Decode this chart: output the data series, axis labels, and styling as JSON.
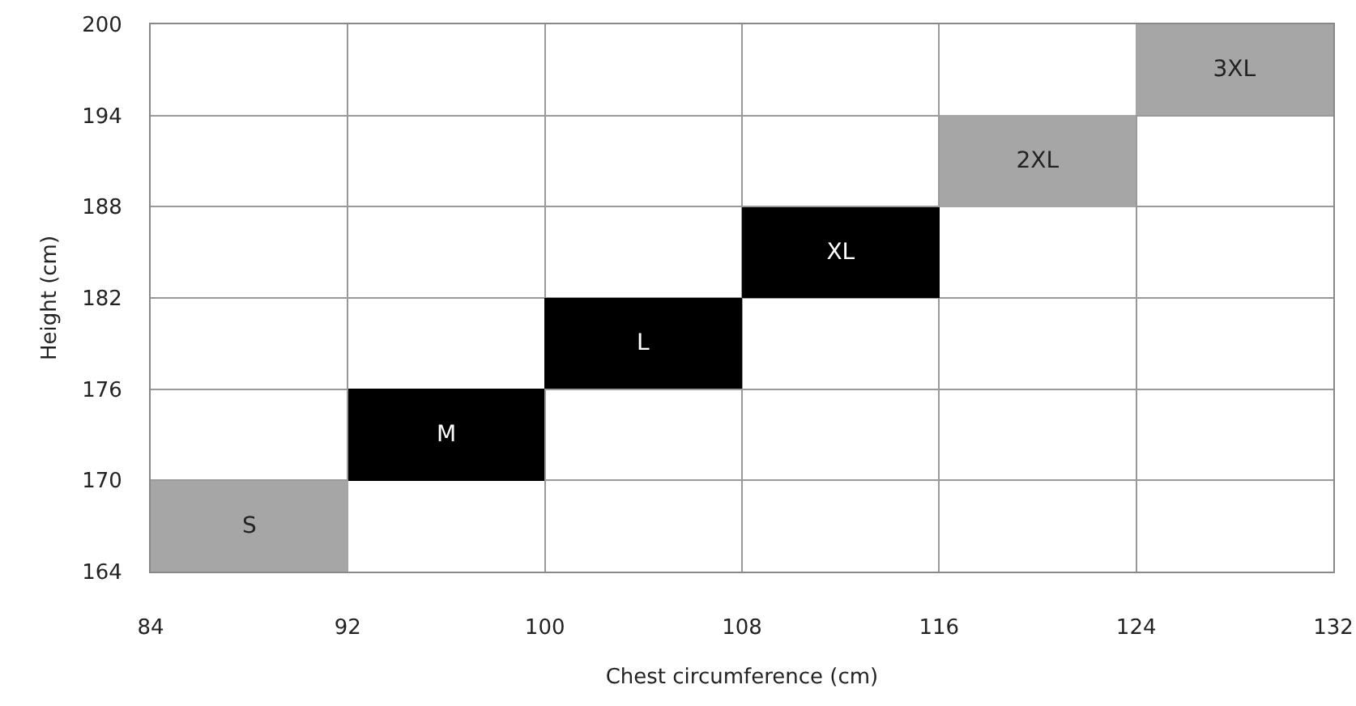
{
  "chart_data": {
    "type": "bar",
    "series": [
      {
        "name": "S",
        "color": "#a6a6a6",
        "x": [
          88
        ],
        "base": [
          164
        ],
        "values": [
          6
        ]
      },
      {
        "name": "M",
        "color": "#000000",
        "x": [
          96
        ],
        "base": [
          170
        ],
        "values": [
          6
        ]
      },
      {
        "name": "L",
        "color": "#000000",
        "x": [
          104
        ],
        "base": [
          176
        ],
        "values": [
          6
        ]
      },
      {
        "name": "XL",
        "color": "#000000",
        "x": [
          112
        ],
        "base": [
          182
        ],
        "values": [
          6
        ]
      },
      {
        "name": "2XL",
        "color": "#a6a6a6",
        "x": [
          120
        ],
        "base": [
          188
        ],
        "values": [
          6
        ]
      },
      {
        "name": "3XL",
        "color": "#a6a6a6",
        "x": [
          128
        ],
        "base": [
          194
        ],
        "values": [
          6
        ]
      }
    ],
    "xlim": [
      84,
      132
    ],
    "xticks": [
      84,
      92,
      100,
      108,
      116,
      124,
      132
    ],
    "ylim": [
      164,
      200
    ],
    "yticks": [
      164,
      170,
      176,
      182,
      188,
      194,
      200
    ],
    "xlabel": "Chest circumference (cm)",
    "ylabel": "Height (cm)",
    "grid": true,
    "legend": false
  }
}
